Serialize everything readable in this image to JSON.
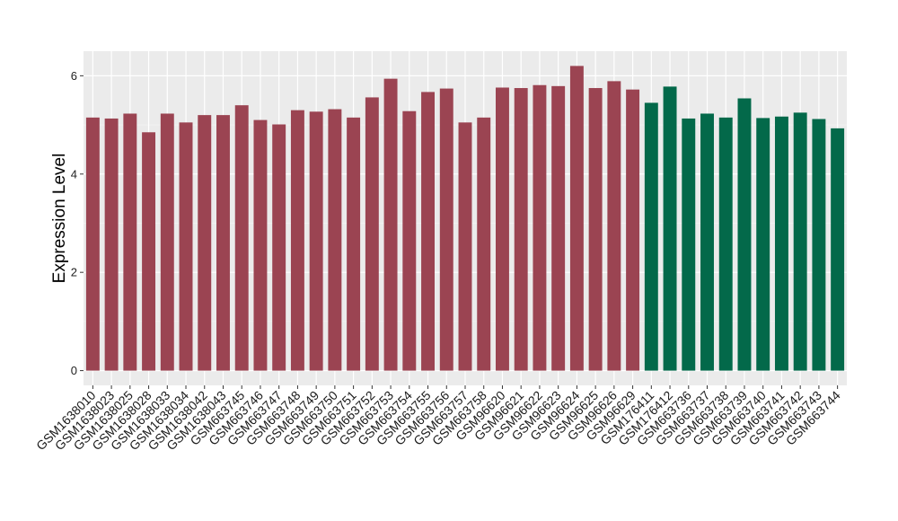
{
  "chart_data": {
    "type": "bar",
    "ylabel": "Expression Level",
    "xlabel": "",
    "ylim": [
      -0.3,
      6.5
    ],
    "yticks": [
      0,
      2,
      4,
      6
    ],
    "grid": true,
    "background": "#ebebeb",
    "categories": [
      "GSM1638010",
      "GSM1638023",
      "GSM1638025",
      "GSM1638028",
      "GSM1638033",
      "GSM1638034",
      "GSM1638042",
      "GSM1638043",
      "GSM663745",
      "GSM663746",
      "GSM663747",
      "GSM663748",
      "GSM663749",
      "GSM663750",
      "GSM663751",
      "GSM663752",
      "GSM663753",
      "GSM663754",
      "GSM663755",
      "GSM663756",
      "GSM663757",
      "GSM663758",
      "GSM96620",
      "GSM96621",
      "GSM96622",
      "GSM96623",
      "GSM96624",
      "GSM96625",
      "GSM96626",
      "GSM96629",
      "GSM176411",
      "GSM176412",
      "GSM663736",
      "GSM663737",
      "GSM663738",
      "GSM663739",
      "GSM663740",
      "GSM663741",
      "GSM663742",
      "GSM663743",
      "GSM663744"
    ],
    "values": [
      5.15,
      5.13,
      5.23,
      4.85,
      5.23,
      5.05,
      5.2,
      5.2,
      5.4,
      5.1,
      5.01,
      5.3,
      5.27,
      5.32,
      5.15,
      5.56,
      5.94,
      5.28,
      5.67,
      5.74,
      5.05,
      5.15,
      5.76,
      5.75,
      5.81,
      5.79,
      6.2,
      5.75,
      5.89,
      5.72,
      5.45,
      5.78,
      5.13,
      5.23,
      5.15,
      5.54,
      5.14,
      5.17,
      5.25,
      5.12,
      4.93
    ],
    "group_colors": [
      "#9b4452",
      "#9b4452",
      "#9b4452",
      "#9b4452",
      "#9b4452",
      "#9b4452",
      "#9b4452",
      "#9b4452",
      "#9b4452",
      "#9b4452",
      "#9b4452",
      "#9b4452",
      "#9b4452",
      "#9b4452",
      "#9b4452",
      "#9b4452",
      "#9b4452",
      "#9b4452",
      "#9b4452",
      "#9b4452",
      "#9b4452",
      "#9b4452",
      "#9b4452",
      "#9b4452",
      "#9b4452",
      "#9b4452",
      "#9b4452",
      "#9b4452",
      "#9b4452",
      "#9b4452",
      "#03694a",
      "#03694a",
      "#03694a",
      "#03694a",
      "#03694a",
      "#03694a",
      "#03694a",
      "#03694a",
      "#03694a",
      "#03694a",
      "#03694a"
    ]
  }
}
